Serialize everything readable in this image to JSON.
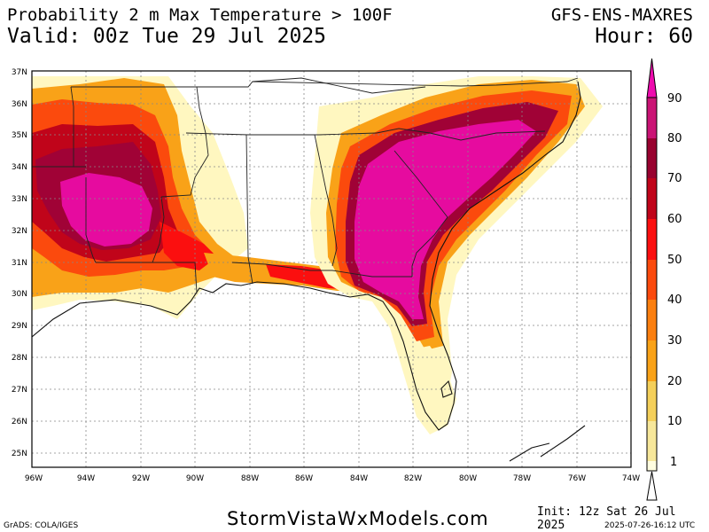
{
  "header": {
    "title": "Probability 2 m Max Temperature > 100F",
    "model": "GFS-ENS-MAXRES",
    "valid": "Valid: 00z Tue 29 Jul 2025",
    "hour": "Hour: 60"
  },
  "map": {
    "lon_labels": [
      "96W",
      "94W",
      "92W",
      "90W",
      "88W",
      "86W",
      "84W",
      "82W",
      "80W",
      "78W",
      "76W",
      "74W"
    ],
    "lat_labels": [
      "37N",
      "36N",
      "35N",
      "34N",
      "33N",
      "32N",
      "31N",
      "30N",
      "29N",
      "28N",
      "27N",
      "26N",
      "25N"
    ],
    "lon_range": [
      -96,
      -74
    ],
    "lat_range": [
      24.6,
      37.0
    ]
  },
  "legend": {
    "labels": [
      "1",
      "10",
      "20",
      "30",
      "40",
      "50",
      "60",
      "70",
      "80",
      "90"
    ],
    "colors": [
      "#fffde0",
      "#f7e79a",
      "#f4cf5a",
      "#f9a218",
      "#fb7f0f",
      "#fb4a0d",
      "#fb0f0f",
      "#c0041a",
      "#98022f",
      "#ca1475",
      "#ee0bae"
    ]
  },
  "colors": {
    "p10": "#fff7c0",
    "p20": "#f7e79a",
    "p30": "#f9a218",
    "p40": "#fb7f0f",
    "p50": "#fb4a0d",
    "p60": "#fb0f0f",
    "p70": "#c0041a",
    "p80": "#a00236",
    "p90": "#e60b9f"
  },
  "footer": {
    "credit": "GrADS: COLA/IGES",
    "site": "StormVistaWxModels.com",
    "init": "Init: 12z Sat 26 Jul 2025",
    "stamp": "2025-07-26-16:12 UTC"
  }
}
